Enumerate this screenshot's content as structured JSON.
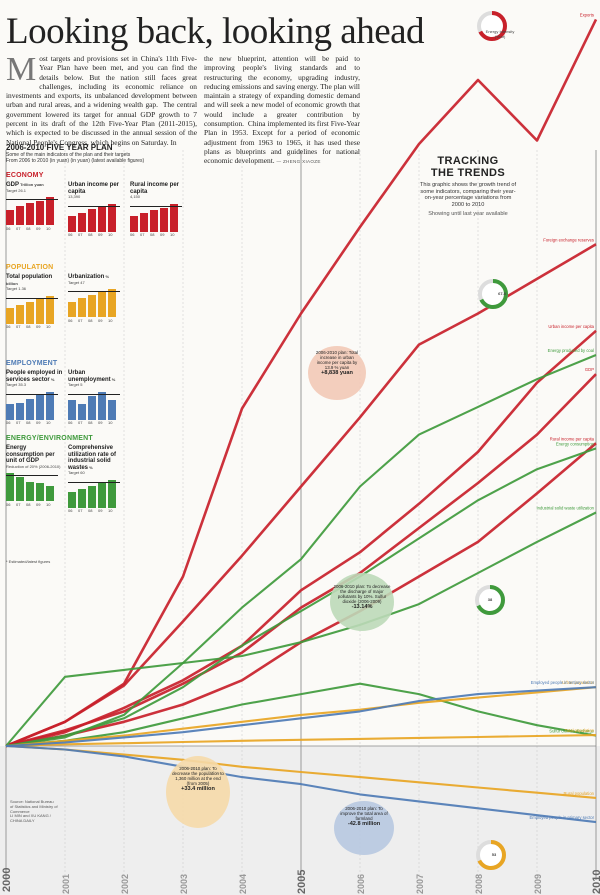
{
  "header": {
    "title": "Looking back, looking ahead",
    "body_col1": "ost targets and provisions set in China's 11th Five-Year Plan have been met, and you can find the details below. But the nation still faces great challenges, including its economic reliance on investments and exports, its unbalanced development between urban and rural areas, and a widening wealth gap.  The central government lowered its target for annual GDP growth to 7 percent in its draft of the 12th Five-Year Plan (2011-2015), which is expected to be discussed in the annual session of the National People's Congress, which begins on Saturday. In",
    "body_col2": "the new blueprint, attention will be paid to improving people's living standards and to restructuring the economy, upgrading industry, reducing emissions and saving energy. The plan will maintain a strategy of expanding domestic demand and will seek a new model of economic growth that would include a greater contribution by consumption.  China implemented its first Five-Year Plan in 1953. Except for a period of economic adjustment from 1963 to 1965, it has used these plans as blueprints and guidelines for national economic development.",
    "dropcap": "M",
    "byline": "— ZHENG XIAOZE"
  },
  "plan": {
    "title": "2006-2010 FIVE YEAR PLAN",
    "subtitle": "Some of the main indicators of the plan and their targets",
    "subtitle2": "From 2006 to 2010 (in yuan) (in yuan) (latest available figures)",
    "sections": [
      {
        "name": "ECONOMY",
        "color": "#c8202a",
        "charts": [
          {
            "label": "GDP",
            "unit": "Trillion yuan",
            "target": "Target 26.1",
            "mini": [
              {
                "label": "06",
                "value": 21.6
              },
              {
                "label": "07",
                "value": 26.6
              },
              {
                "label": "08",
                "value": 31.4
              },
              {
                "label": "09",
                "value": 34.1
              },
              {
                "label": "10",
                "value": 39.8
              }
            ]
          },
          {
            "label": "Urban income per capita",
            "unit": "",
            "target": "13,390",
            "mini": [
              {
                "label": "06",
                "value": 11759
              },
              {
                "label": "07",
                "value": 13786
              },
              {
                "label": "08",
                "value": 15781
              },
              {
                "label": "09",
                "value": 17175
              },
              {
                "label": "10",
                "value": 19109
              }
            ]
          },
          {
            "label": "Rural income per capita",
            "unit": "",
            "target": "4,150",
            "mini": [
              {
                "label": "06",
                "value": 3587
              },
              {
                "label": "07",
                "value": 4140
              },
              {
                "label": "08",
                "value": 4761
              },
              {
                "label": "09",
                "value": 5153
              },
              {
                "label": "10",
                "value": 5919
              }
            ]
          }
        ]
      },
      {
        "name": "POPULATION",
        "color": "#e8a523",
        "charts": [
          {
            "label": "Total population",
            "unit": "billion",
            "target": "Target 1.36",
            "mini": [
              {
                "label": "06",
                "value": 1.314
              },
              {
                "label": "07",
                "value": 1.321
              },
              {
                "label": "08",
                "value": 1.328
              },
              {
                "label": "09",
                "value": 1.335
              },
              {
                "label": "10",
                "value": 1.341
              }
            ]
          },
          {
            "label": "Urbanization",
            "unit": "%",
            "target": "Target 47",
            "mini": [
              {
                "label": "06",
                "value": 43.9
              },
              {
                "label": "07",
                "value": 44.9
              },
              {
                "label": "08",
                "value": 45.7
              },
              {
                "label": "09",
                "value": 46.6
              },
              {
                "label": "10",
                "value": 47.5
              }
            ]
          }
        ]
      },
      {
        "name": "EMPLOYMENT",
        "color": "#4e7bb5",
        "charts": [
          {
            "label": "People employed in services sector",
            "unit": "%",
            "target": "Target 35.3",
            "mini": [
              {
                "label": "06",
                "value": 32.2
              },
              {
                "label": "07",
                "value": 32.4
              },
              {
                "label": "08",
                "value": 33.2
              },
              {
                "label": "09",
                "value": 34.1
              },
              {
                "label": "10",
                "value": 34.6
              }
            ]
          },
          {
            "label": "Urban unemployment",
            "unit": "%",
            "target": "Target 5",
            "mini": [
              {
                "label": "06",
                "value": 4.1
              },
              {
                "label": "07",
                "value": 4.0
              },
              {
                "label": "08",
                "value": 4.2
              },
              {
                "label": "09",
                "value": 4.3
              },
              {
                "label": "10",
                "value": 4.1
              }
            ]
          }
        ]
      },
      {
        "name": "ENERGY/ENVIRONMENT",
        "color": "#3f9a3c",
        "charts": [
          {
            "label": "Energy consumption per unit of GDP",
            "unit": "",
            "target": "Reduction of 20% (2006-2010)",
            "mini": [
              {
                "label": "06",
                "value": 1.24
              },
              {
                "label": "07",
                "value": 1.18
              },
              {
                "label": "08",
                "value": 1.1
              },
              {
                "label": "09",
                "value": 1.08
              },
              {
                "label": "10",
                "value": 1.03
              }
            ]
          },
          {
            "label": "Comprehensive utilization rate of industrial solid wastes",
            "unit": "%",
            "target": "Target 60",
            "mini": [
              {
                "label": "06",
                "value": 60.2
              },
              {
                "label": "07",
                "value": 62.1
              },
              {
                "label": "08",
                "value": 64.3
              },
              {
                "label": "09",
                "value": 67.0
              },
              {
                "label": "10",
                "value": 69.0
              }
            ]
          }
        ]
      }
    ],
    "footnote": "* Estimated/latest figures"
  },
  "tracking": {
    "title_line1": "TRACKING",
    "title_line2": "THE TRENDS",
    "desc": "This graphic shows the growth trend of some indicators, comparing their year-on-year percentage variations from 2000 to 2010",
    "note": "Showing until last year available"
  },
  "callouts": [
    {
      "text": "2006-2010 plan: Total increase in urban income per capita by 13.9 % yuan",
      "value": "+8,838 yuan"
    },
    {
      "text": "2006-2010 plan: To decrease the discharge of major pollutants by 10%. Sulfur dioxide (2006-2009)",
      "value": "-13.14%"
    },
    {
      "text": "2006-2010 plan: To decrease the population to 1,360 million at the end (from 2005)",
      "value": "+33.4 million"
    },
    {
      "text": "2006-2010 plan: To improve the total area of farmland",
      "value": "-42.8 million"
    }
  ],
  "rings": [
    {
      "label": "Energy Intensity (Year)",
      "value": "3.2"
    },
    {
      "label": "Energy produced by coal",
      "value": "67.8"
    },
    {
      "label": "Employed population",
      "value": "38"
    },
    {
      "label": "Population living in rural areas (2010)",
      "value": "53"
    }
  ],
  "source": "Source: National Bureau of Statistics and Ministry of Commerce\nLI MIN and XU KANG / CHINA DAILY",
  "chart_data": {
    "type": "line",
    "title": "TRACKING THE TRENDS",
    "x": [
      2000,
      2001,
      2002,
      2003,
      2004,
      2005,
      2006,
      2007,
      2008,
      2009,
      2010
    ],
    "xlabel": "",
    "ylabel": "",
    "ylim": [
      -80,
      420
    ],
    "grid": true,
    "series": [
      {
        "name": "Exports",
        "color": "#c8202a",
        "values": [
          0,
          14,
          36,
          98,
          195,
          250,
          300,
          348,
          385,
          350,
          420
        ]
      },
      {
        "name": "Foreign exchange reserves",
        "color": "#c8202a",
        "values": [
          0,
          14,
          35,
          72,
          110,
          150,
          190,
          232,
          250,
          270,
          290
        ]
      },
      {
        "name": "Urban income per capita",
        "color": "#c8202a",
        "values": [
          0,
          8,
          22,
          38,
          58,
          90,
          112,
          140,
          170,
          210,
          240
        ]
      },
      {
        "name": "GDP",
        "color": "#c8202a",
        "values": [
          0,
          9,
          20,
          36,
          54,
          80,
          100,
          126,
          152,
          180,
          215
        ]
      },
      {
        "name": "Rural income per capita",
        "color": "#c8202a",
        "values": [
          0,
          6,
          14,
          24,
          38,
          60,
          78,
          98,
          118,
          146,
          175
        ]
      },
      {
        "name": "Energy produced by coal",
        "color": "#3f9a3c",
        "values": [
          0,
          5,
          18,
          48,
          80,
          108,
          150,
          180,
          196,
          212,
          226
        ]
      },
      {
        "name": "Energy consumption",
        "color": "#3f9a3c",
        "values": [
          0,
          6,
          16,
          34,
          58,
          78,
          98,
          120,
          142,
          160,
          172
        ]
      },
      {
        "name": "Industrial solid waste utilization",
        "color": "#3f9a3c",
        "values": [
          0,
          40,
          44,
          48,
          52,
          60,
          70,
          82,
          100,
          118,
          135
        ]
      },
      {
        "name": "Sulfur dioxide discharge",
        "color": "#3f9a3c",
        "values": [
          0,
          3,
          8,
          16,
          24,
          30,
          36,
          30,
          20,
          12,
          6
        ]
      },
      {
        "name": "Urban population",
        "color": "#e8a523",
        "values": [
          0,
          3,
          6,
          10,
          14,
          18,
          21,
          25,
          28,
          31,
          34
        ]
      },
      {
        "name": "Total population",
        "color": "#e8a523",
        "values": [
          0,
          1,
          1.6,
          2.3,
          3,
          3.6,
          4.1,
          4.7,
          5.2,
          5.8,
          6.3
        ]
      },
      {
        "name": "Rural population",
        "color": "#e8a523",
        "values": [
          0,
          -2,
          -5,
          -8,
          -12,
          -15,
          -18,
          -21,
          -24,
          -27,
          -30
        ]
      },
      {
        "name": "Employed people in tertiary sector",
        "color": "#4e7bb5",
        "values": [
          0,
          2,
          5,
          8,
          12,
          16,
          20,
          26,
          30,
          32,
          34
        ]
      },
      {
        "name": "Employed people in primary sector",
        "color": "#4e7bb5",
        "values": [
          0,
          -2,
          -6,
          -12,
          -18,
          -22,
          -28,
          -32,
          -36,
          -40,
          -44
        ]
      }
    ]
  }
}
